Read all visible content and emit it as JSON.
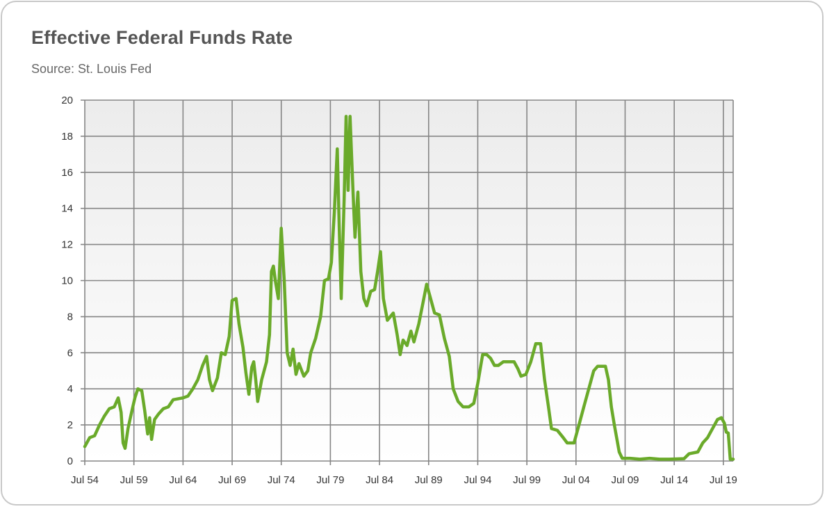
{
  "chart_data": {
    "type": "line",
    "title": "Effective Federal Funds Rate",
    "subtitle": "Source: St. Louis Fed",
    "xlabel": "",
    "ylabel": "",
    "xlim": [
      1954.5,
      2020.5
    ],
    "ylim": [
      0,
      20
    ],
    "grid": true,
    "legend": "none",
    "line_color": "#6aaa2a",
    "x_ticks": [
      {
        "x": 1954.5,
        "label": "Jul 54"
      },
      {
        "x": 1959.5,
        "label": "Jul 59"
      },
      {
        "x": 1964.5,
        "label": "Jul 64"
      },
      {
        "x": 1969.5,
        "label": "Jul 69"
      },
      {
        "x": 1974.5,
        "label": "Jul 74"
      },
      {
        "x": 1979.5,
        "label": "Jul 79"
      },
      {
        "x": 1984.5,
        "label": "Jul 84"
      },
      {
        "x": 1989.5,
        "label": "Jul 89"
      },
      {
        "x": 1994.5,
        "label": "Jul 94"
      },
      {
        "x": 1999.5,
        "label": "Jul 99"
      },
      {
        "x": 2004.5,
        "label": "Jul 04"
      },
      {
        "x": 2009.5,
        "label": "Jul 09"
      },
      {
        "x": 2014.5,
        "label": "Jul 14"
      },
      {
        "x": 2019.5,
        "label": "Jul 19"
      }
    ],
    "y_ticks": [
      "0",
      "2",
      "4",
      "6",
      "8",
      "10",
      "12",
      "14",
      "16",
      "18",
      "20"
    ],
    "series": [
      {
        "name": "Effective Federal Funds Rate",
        "x": [
          1954.5,
          1955,
          1955.5,
          1956,
          1956.5,
          1957,
          1957.5,
          1957.9,
          1958.2,
          1958.4,
          1958.6,
          1958.9,
          1959.3,
          1959.6,
          1959.9,
          1960.3,
          1960.6,
          1960.9,
          1961.1,
          1961.3,
          1961.6,
          1962,
          1962.5,
          1963,
          1963.5,
          1964.5,
          1965,
          1965.5,
          1966,
          1966.5,
          1966.9,
          1967.2,
          1967.5,
          1968,
          1968.4,
          1968.8,
          1969.2,
          1969.5,
          1969.9,
          1970.2,
          1970.6,
          1970.9,
          1971.2,
          1971.5,
          1971.7,
          1971.9,
          1972.1,
          1972.5,
          1973,
          1973.3,
          1973.5,
          1973.7,
          1973.9,
          1974.2,
          1974.5,
          1974.8,
          1975.1,
          1975.4,
          1975.7,
          1976,
          1976.3,
          1976.8,
          1977.2,
          1977.5,
          1978,
          1978.5,
          1978.9,
          1979.3,
          1979.6,
          1979.9,
          1980.2,
          1980.4,
          1980.6,
          1980.9,
          1981.1,
          1981.3,
          1981.5,
          1981.8,
          1982,
          1982.3,
          1982.6,
          1982.9,
          1983.2,
          1983.6,
          1984,
          1984.3,
          1984.6,
          1984.9,
          1985.3,
          1985.9,
          1986.3,
          1986.6,
          1986.9,
          1987.3,
          1987.7,
          1988,
          1988.5,
          1988.9,
          1989.3,
          1989.7,
          1990.1,
          1990.6,
          1991.1,
          1991.6,
          1992,
          1992.5,
          1993,
          1993.6,
          1994.1,
          1994.5,
          1995,
          1995.4,
          1995.8,
          1996.2,
          1996.6,
          1997.1,
          1997.6,
          1998.2,
          1998.6,
          1998.9,
          1999.4,
          1999.9,
          2000.4,
          2000.9,
          2001.3,
          2001.7,
          2002,
          2002.6,
          2003.2,
          2003.6,
          2004.3,
          2004.8,
          2005.3,
          2005.8,
          2006.3,
          2006.7,
          2007.5,
          2007.8,
          2008.1,
          2008.4,
          2008.9,
          2009.2,
          2010,
          2011,
          2012,
          2013,
          2014,
          2015.5,
          2016,
          2016.9,
          2017.4,
          2017.9,
          2018.4,
          2018.9,
          2019.3,
          2019.6,
          2019.8,
          2020,
          2020.2,
          2020.5
        ],
        "y": [
          0.8,
          1.3,
          1.4,
          2.0,
          2.5,
          2.9,
          3.0,
          3.5,
          2.7,
          1.0,
          0.7,
          1.8,
          2.8,
          3.5,
          4.0,
          3.9,
          2.8,
          1.5,
          2.4,
          1.2,
          2.3,
          2.6,
          2.9,
          3.0,
          3.4,
          3.5,
          3.6,
          4.0,
          4.5,
          5.3,
          5.8,
          4.5,
          3.9,
          4.6,
          6.0,
          5.9,
          6.9,
          8.9,
          9.0,
          7.6,
          6.3,
          4.9,
          3.7,
          5.2,
          5.5,
          4.5,
          3.3,
          4.5,
          5.5,
          7.0,
          10.5,
          10.8,
          10.0,
          9.0,
          12.9,
          10.0,
          6.0,
          5.3,
          6.2,
          4.8,
          5.4,
          4.7,
          5.0,
          6.0,
          6.8,
          8.0,
          10.0,
          10.1,
          11.0,
          13.8,
          17.3,
          13.0,
          9.0,
          14.5,
          19.1,
          15.0,
          19.1,
          15.0,
          12.4,
          14.9,
          10.5,
          9.0,
          8.6,
          9.4,
          9.5,
          10.5,
          11.6,
          9.0,
          7.8,
          8.2,
          7.0,
          5.9,
          6.7,
          6.4,
          7.2,
          6.6,
          7.6,
          8.7,
          9.8,
          9.0,
          8.2,
          8.1,
          6.8,
          5.8,
          4.0,
          3.3,
          3.0,
          3.0,
          3.2,
          4.3,
          5.9,
          5.9,
          5.7,
          5.3,
          5.3,
          5.5,
          5.5,
          5.5,
          5.1,
          4.7,
          4.8,
          5.5,
          6.5,
          6.5,
          4.5,
          3.0,
          1.8,
          1.7,
          1.3,
          1.0,
          1.0,
          2.0,
          3.0,
          4.0,
          5.0,
          5.25,
          5.25,
          4.5,
          3.0,
          2.0,
          0.5,
          0.15,
          0.15,
          0.1,
          0.15,
          0.1,
          0.1,
          0.13,
          0.4,
          0.5,
          1.0,
          1.3,
          1.8,
          2.3,
          2.4,
          2.1,
          1.6,
          1.55,
          0.1,
          0.1
        ]
      }
    ]
  }
}
